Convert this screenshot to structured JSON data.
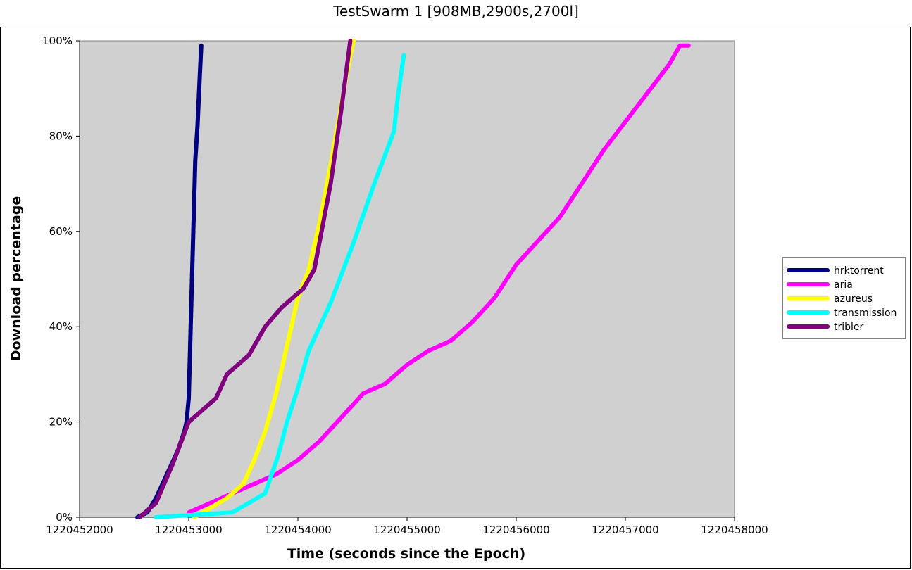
{
  "chart_data": {
    "type": "line",
    "title": "TestSwarm 1 [908MB,2900s,2700l]",
    "xlabel": "Time (seconds since the Epoch)",
    "ylabel": "Download percentage",
    "xlim": [
      1220452000,
      1220458000
    ],
    "ylim": [
      0,
      100
    ],
    "x_ticks": [
      1220452000,
      1220453000,
      1220454000,
      1220455000,
      1220456000,
      1220457000,
      1220458000
    ],
    "y_ticks": [
      0,
      20,
      40,
      60,
      80,
      100
    ],
    "y_tick_labels": [
      "0%",
      "20%",
      "40%",
      "60%",
      "80%",
      "100%"
    ],
    "grid": false,
    "plot_background": "#d0d0d0",
    "legend_position": "right",
    "series": [
      {
        "name": "hrktorrent",
        "color": "#000080",
        "x": [
          1220452530,
          1220452620,
          1220452700,
          1220452800,
          1220452900,
          1220452960,
          1220452980,
          1220453000,
          1220453030,
          1220453060,
          1220453080,
          1220453100,
          1220453115
        ],
        "y": [
          0,
          1,
          4,
          9,
          14,
          18,
          20,
          25,
          50,
          75,
          82,
          92,
          99
        ]
      },
      {
        "name": "aria",
        "color": "#ff00ff",
        "x": [
          1220453000,
          1220453200,
          1220453400,
          1220453600,
          1220453800,
          1220454000,
          1220454200,
          1220454400,
          1220454600,
          1220454800,
          1220455000,
          1220455200,
          1220455400,
          1220455600,
          1220455800,
          1220456000,
          1220456200,
          1220456400,
          1220456600,
          1220456800,
          1220457000,
          1220457200,
          1220457400,
          1220457500,
          1220457580
        ],
        "y": [
          1,
          3,
          5,
          7,
          9,
          12,
          16,
          21,
          26,
          28,
          32,
          35,
          37,
          41,
          46,
          53,
          58,
          63,
          70,
          77,
          83,
          89,
          95,
          99,
          99
        ]
      },
      {
        "name": "azureus",
        "color": "#ffff00",
        "x": [
          1220453050,
          1220453200,
          1220453350,
          1220453500,
          1220453600,
          1220453700,
          1220453800,
          1220453900,
          1220454000,
          1220454100,
          1220454200,
          1220454300,
          1220454400,
          1220454480,
          1220454510
        ],
        "y": [
          0,
          2,
          4,
          7,
          12,
          18,
          26,
          36,
          46,
          52,
          62,
          74,
          87,
          97,
          100
        ]
      },
      {
        "name": "transmission",
        "color": "#00ffff",
        "x": [
          1220452700,
          1220453400,
          1220453550,
          1220453700,
          1220453820,
          1220453900,
          1220454000,
          1220454100,
          1220454300,
          1220454500,
          1220454700,
          1220454880,
          1220454920,
          1220454970
        ],
        "y": [
          0,
          1,
          3,
          5,
          13,
          20,
          27,
          35,
          45,
          57,
          70,
          81,
          89,
          97
        ]
      },
      {
        "name": "tribler",
        "color": "#800080",
        "x": [
          1220452550,
          1220452700,
          1220452850,
          1220453000,
          1220453100,
          1220453250,
          1220453350,
          1220453550,
          1220453700,
          1220453850,
          1220454050,
          1220454150,
          1220454300,
          1220454400,
          1220454480
        ],
        "y": [
          0,
          3,
          11,
          20,
          22,
          25,
          30,
          34,
          40,
          44,
          48,
          52,
          70,
          86,
          100
        ]
      }
    ]
  }
}
